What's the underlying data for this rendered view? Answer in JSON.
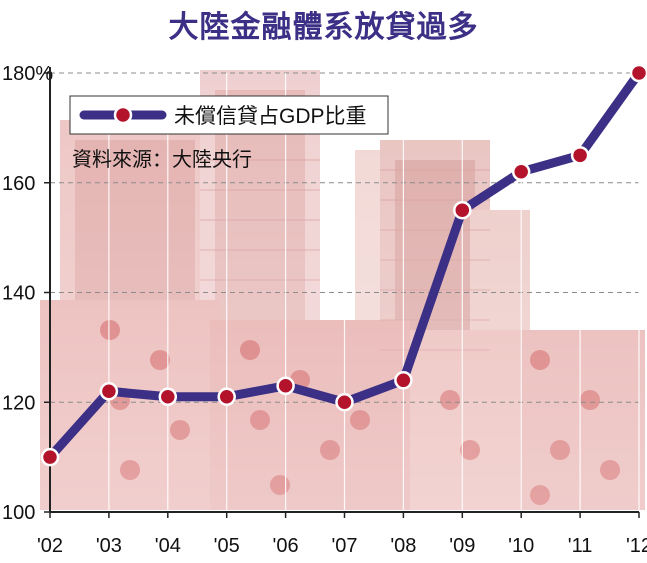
{
  "title": "大陸金融體系放貸過多",
  "legend": {
    "label": "未償信貸占GDP比重"
  },
  "source": "資料來源：大陸央行",
  "colors": {
    "title": "#3b2f86",
    "line": "#3b2f86",
    "marker_fill": "#b3142b",
    "marker_stroke": "#ffffff",
    "grid": "#8c8c8c",
    "axis": "#222222",
    "background_photo_tint": "#e9b3b3"
  },
  "chart_data": {
    "type": "line",
    "title": "大陸金融體系放貸過多",
    "xlabel": "",
    "ylabel": "",
    "categories": [
      "'02",
      "'03",
      "'04",
      "'05",
      "'06",
      "'07",
      "'08",
      "'09",
      "'10",
      "'11",
      "'12"
    ],
    "series": [
      {
        "name": "未償信貸占GDP比重",
        "values": [
          110,
          122,
          121,
          121,
          123,
          120,
          124,
          155,
          162,
          165,
          180
        ]
      }
    ],
    "ylim": [
      100,
      180
    ],
    "yticks": [
      100,
      120,
      140,
      160,
      180
    ],
    "ytick_labels": [
      "100",
      "120",
      "140",
      "160",
      "180%"
    ],
    "grid": "horizontal dashed",
    "legend_position": "top-left"
  }
}
